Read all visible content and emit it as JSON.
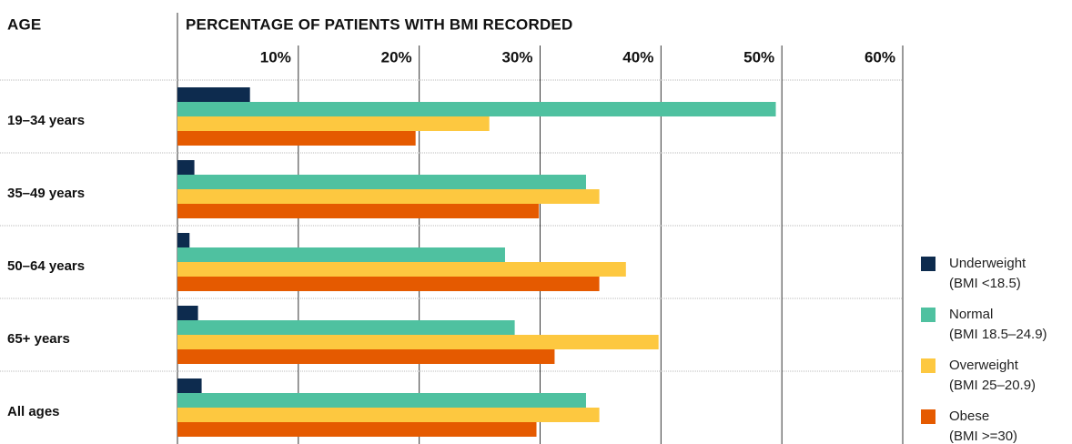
{
  "chart_data": {
    "type": "barh",
    "category_label": "AGE",
    "title": "PERCENTAGE OF PATIENTS WITH BMI RECORDED",
    "categories": [
      "19–34 years",
      "35–49 years",
      "50–64 years",
      "65+ years",
      "All ages"
    ],
    "series": [
      {
        "name": "Underweight",
        "description": "(BMI <18.5)",
        "color": "#0d2b4e",
        "values": [
          6.0,
          1.4,
          1.0,
          1.7,
          2.0
        ]
      },
      {
        "name": "Normal",
        "description": "(BMI 18.5–24.9)",
        "color": "#4fc1a0",
        "values": [
          49.5,
          33.8,
          27.1,
          27.9,
          33.8
        ]
      },
      {
        "name": "Overweight",
        "description": "(BMI 25–20.9)",
        "color": "#fdc840",
        "values": [
          25.8,
          34.9,
          37.1,
          39.8,
          34.9
        ]
      },
      {
        "name": "Obese",
        "description": "(BMI >=30)",
        "color": "#e55a00",
        "values": [
          19.7,
          29.9,
          34.9,
          31.2,
          29.7
        ]
      }
    ],
    "xlim": [
      0,
      60
    ],
    "xticks": [
      {
        "value": 10,
        "label": "10%"
      },
      {
        "value": 20,
        "label": "20%"
      },
      {
        "value": 30,
        "label": "30%"
      },
      {
        "value": 40,
        "label": "40%"
      },
      {
        "value": 50,
        "label": "50%"
      },
      {
        "value": 60,
        "label": "60%"
      }
    ],
    "grid": true,
    "legend": "right"
  }
}
